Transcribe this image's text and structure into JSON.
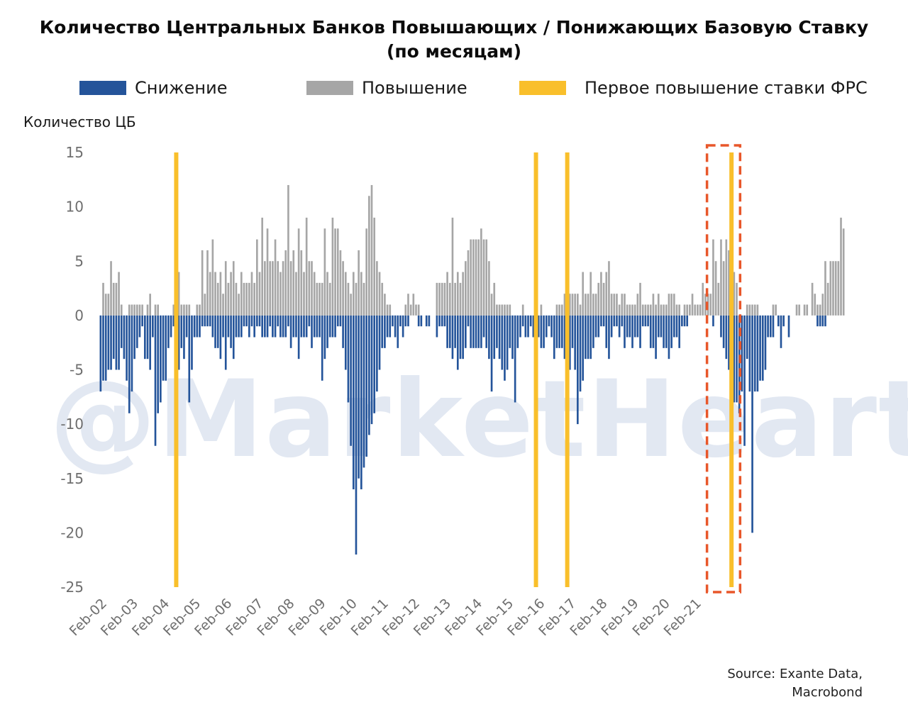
{
  "title_line1": "Количество Центральных Банков Повышающих / Понижающих Базовую Ставку",
  "title_line2": "(по месяцам)",
  "watermark": "@MarketHeart",
  "source_line1": "Source: Exante Data,",
  "source_line2": "Macrobond",
  "legend": [
    {
      "label": "Снижение",
      "color": "#24549a"
    },
    {
      "label": "Повышение",
      "color": "#a6a6a6"
    },
    {
      "label": "Первое повышение ставки ФРС",
      "color": "#f9bf2b"
    }
  ],
  "highlight_color": "#e8572a",
  "chart_data": {
    "type": "bar",
    "ylabel": "Количество ЦБ",
    "ylim": [
      -25,
      15
    ],
    "yticks": [
      15,
      10,
      5,
      0,
      -5,
      -10,
      -15,
      -20,
      -25
    ],
    "x_start": "Jan-02",
    "x_end": "Dec-21",
    "xtick_labels": [
      "Feb-02",
      "Feb-03",
      "Feb-04",
      "Feb-05",
      "Feb-06",
      "Feb-07",
      "Feb-08",
      "Feb-09",
      "Feb-10",
      "Feb-11",
      "Feb-12",
      "Feb-13",
      "Feb-14",
      "Feb-15",
      "Feb-16",
      "Feb-17",
      "Feb-18",
      "Feb-19",
      "Feb-20",
      "Feb-21"
    ],
    "series": [
      {
        "name": "Снижение",
        "color": "#24549a",
        "values": [
          -7,
          -6,
          -6,
          -5,
          -5,
          -4,
          -5,
          -5,
          -3,
          -4,
          -6,
          -9,
          -7,
          -4,
          -3,
          -2,
          -1,
          -4,
          -4,
          -5,
          -2,
          -12,
          -9,
          -8,
          -6,
          -6,
          -3,
          -2,
          -1,
          -4,
          -5,
          -3,
          -4,
          -2,
          -8,
          -5,
          -2,
          -2,
          -2,
          -1,
          -1,
          -1,
          -1,
          -2,
          -3,
          -3,
          -4,
          -2,
          -5,
          -2,
          -3,
          -4,
          -2,
          -2,
          -2,
          -1,
          -1,
          -2,
          -1,
          -2,
          -1,
          -1,
          -2,
          -2,
          -2,
          -1,
          -2,
          -2,
          -1,
          -2,
          -2,
          -2,
          -1,
          -3,
          -2,
          -2,
          -4,
          -2,
          -2,
          -2,
          -1,
          -3,
          -2,
          -2,
          -2,
          -6,
          -4,
          -3,
          -2,
          -2,
          -2,
          -1,
          -1,
          -3,
          -5,
          -8,
          -12,
          -16,
          -22,
          -15,
          -16,
          -14,
          -13,
          -11,
          -10,
          -9,
          -7,
          -5,
          -3,
          -3,
          -2,
          -2,
          -1,
          -2,
          -3,
          -1,
          -2,
          -1,
          -1,
          0,
          0,
          0,
          -1,
          -1,
          0,
          -1,
          -1,
          0,
          0,
          -2,
          -1,
          -1,
          -1,
          -3,
          -3,
          -4,
          -3,
          -5,
          -4,
          -4,
          -3,
          -1,
          -3,
          -3,
          -3,
          -3,
          -3,
          -2,
          -3,
          -4,
          -7,
          -4,
          -3,
          -4,
          -5,
          -6,
          -5,
          -3,
          -4,
          -8,
          -3,
          -2,
          -1,
          -2,
          -2,
          -1,
          -2,
          -3,
          -2,
          -3,
          -3,
          -2,
          -1,
          -2,
          -4,
          -3,
          -3,
          -3,
          -4,
          -4,
          -5,
          -3,
          -5,
          -10,
          -7,
          -6,
          -4,
          -4,
          -4,
          -3,
          -2,
          -2,
          -1,
          -1,
          -3,
          -4,
          -2,
          -1,
          -1,
          -2,
          -1,
          -3,
          -2,
          -2,
          -3,
          -2,
          -2,
          -3,
          -1,
          -1,
          -1,
          -3,
          -3,
          -4,
          -2,
          -2,
          -3,
          -3,
          -4,
          -3,
          -2,
          -2,
          -3,
          -1,
          -1,
          -1,
          0,
          0,
          0,
          0,
          0,
          0,
          0,
          0,
          0,
          -1,
          0,
          0,
          -2,
          -3,
          -4,
          -5,
          -7,
          -8,
          -8,
          -9,
          -7,
          -12,
          -4,
          -7,
          -20,
          -7,
          -7,
          -6,
          -6,
          -5,
          -2,
          -2,
          -2,
          0,
          -1,
          -3,
          -1,
          0,
          -2,
          0,
          0,
          0,
          0,
          0,
          0,
          0,
          0,
          0,
          0,
          -1,
          -1,
          -1,
          -1,
          0,
          0,
          0,
          0
        ]
      },
      {
        "name": "Повышение",
        "color": "#a6a6a6",
        "values": [
          0,
          3,
          2,
          2,
          5,
          3,
          3,
          4,
          1,
          0,
          0,
          1,
          1,
          1,
          1,
          1,
          1,
          0,
          1,
          2,
          0,
          1,
          1,
          0,
          0,
          0,
          0,
          0,
          1,
          0,
          4,
          1,
          1,
          1,
          1,
          0,
          0,
          1,
          1,
          6,
          2,
          6,
          4,
          7,
          4,
          3,
          4,
          2,
          5,
          3,
          4,
          5,
          3,
          2,
          4,
          3,
          3,
          3,
          4,
          3,
          7,
          4,
          9,
          5,
          8,
          5,
          5,
          7,
          5,
          4,
          5,
          6,
          12,
          5,
          6,
          4,
          8,
          6,
          4,
          9,
          5,
          5,
          4,
          3,
          3,
          3,
          8,
          4,
          3,
          9,
          8,
          8,
          6,
          5,
          4,
          3,
          2,
          4,
          3,
          6,
          4,
          3,
          8,
          11,
          12,
          9,
          5,
          4,
          3,
          2,
          1,
          1,
          0,
          0,
          0,
          0,
          0,
          1,
          2,
          1,
          2,
          1,
          1,
          0,
          0,
          0,
          0,
          0,
          0,
          3,
          3,
          3,
          3,
          4,
          3,
          9,
          3,
          4,
          3,
          4,
          5,
          6,
          7,
          7,
          7,
          7,
          8,
          7,
          7,
          5,
          2,
          3,
          1,
          1,
          1,
          1,
          1,
          1,
          0,
          0,
          0,
          0,
          1,
          0,
          0,
          0,
          0,
          0,
          0,
          1,
          0,
          0,
          0,
          0,
          0,
          1,
          1,
          1,
          2,
          2,
          2,
          2,
          2,
          2,
          1,
          4,
          2,
          2,
          4,
          2,
          2,
          3,
          4,
          3,
          4,
          5,
          2,
          2,
          2,
          1,
          2,
          2,
          1,
          1,
          1,
          1,
          2,
          3,
          1,
          1,
          1,
          1,
          2,
          1,
          2,
          1,
          1,
          1,
          2,
          2,
          2,
          1,
          1,
          0,
          1,
          1,
          1,
          2,
          1,
          1,
          1,
          3,
          2,
          2,
          2,
          7,
          5,
          3,
          7,
          5,
          7,
          6,
          5,
          4,
          3,
          0,
          0,
          0,
          1,
          1,
          1,
          1,
          1,
          0,
          0,
          0,
          0,
          0,
          1,
          1,
          0,
          0,
          0,
          0,
          0,
          0,
          0,
          1,
          1,
          0,
          1,
          1,
          0,
          3,
          2,
          1,
          1,
          2,
          5,
          3,
          5,
          5,
          5,
          5,
          9,
          8
        ]
      },
      {
        "name": "Первое повышение ставки ФРС",
        "color": "#f9bf2b",
        "dates": [
          "Jun-04",
          "Dec-15",
          "Dec-16",
          "Mar-22"
        ]
      }
    ]
  }
}
